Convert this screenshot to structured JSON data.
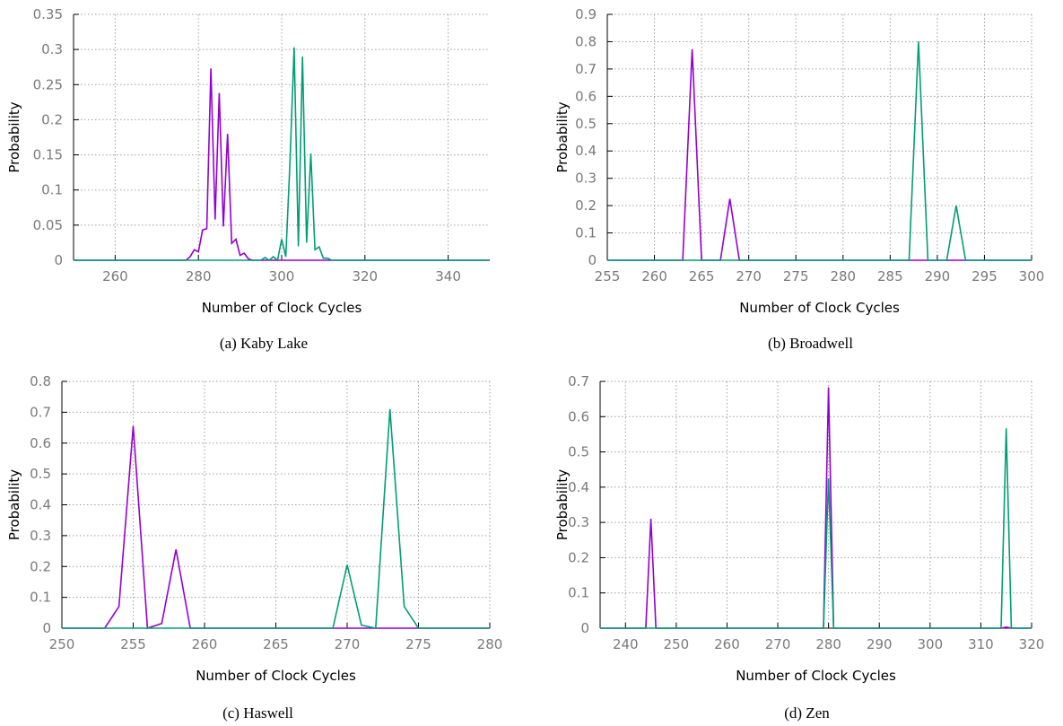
{
  "colors": {
    "series_a": "#9400d3",
    "series_b": "#009e73",
    "grid": "#a0a0a0",
    "axis": "#000000"
  },
  "chart_data": [
    {
      "type": "line",
      "caption": "(a) Kaby Lake",
      "xlabel": "Number of Clock Cycles",
      "ylabel": "Probability",
      "xlim": [
        250,
        350
      ],
      "ylim": [
        0,
        0.35
      ],
      "xticks": [
        260,
        280,
        300,
        320,
        340
      ],
      "yticks": [
        0,
        0.05,
        0.1,
        0.15,
        0.2,
        0.25,
        0.3,
        0.35
      ],
      "ytick_labels": [
        "0",
        "0.05",
        "0.1",
        "0.15",
        "0.2",
        "0.25",
        "0.3",
        "0.35"
      ],
      "grid": true,
      "series": [
        {
          "color": "#9400d3",
          "x": [
            250,
            277,
            278,
            279,
            280,
            281,
            282,
            283,
            284,
            285,
            286,
            287,
            288,
            289,
            290,
            291,
            292,
            293,
            350
          ],
          "y": [
            0,
            0,
            0.005,
            0.015,
            0.012,
            0.043,
            0.045,
            0.273,
            0.058,
            0.238,
            0.048,
            0.18,
            0.024,
            0.03,
            0.007,
            0.01,
            0.002,
            0,
            0
          ]
        },
        {
          "color": "#009e73",
          "x": [
            250,
            295,
            296,
            297,
            298,
            299,
            300,
            301,
            302,
            303,
            304,
            305,
            306,
            307,
            308,
            309,
            310,
            311,
            312,
            350
          ],
          "y": [
            0,
            0,
            0.004,
            0,
            0.005,
            0,
            0.03,
            0.005,
            0.141,
            0.303,
            0.02,
            0.29,
            0.025,
            0.152,
            0.015,
            0.019,
            0.003,
            0.003,
            0,
            0
          ]
        }
      ]
    },
    {
      "type": "line",
      "caption": "(b) Broadwell",
      "xlabel": "Number of Clock Cycles",
      "ylabel": "Probability",
      "xlim": [
        255,
        300
      ],
      "ylim": [
        0,
        0.9
      ],
      "xticks": [
        255,
        260,
        265,
        270,
        275,
        280,
        285,
        290,
        295,
        300
      ],
      "yticks": [
        0,
        0.1,
        0.2,
        0.3,
        0.4,
        0.5,
        0.6,
        0.7,
        0.8,
        0.9
      ],
      "ytick_labels": [
        "0",
        "0.1",
        "0.2",
        "0.3",
        "0.4",
        "0.5",
        "0.6",
        "0.7",
        "0.8",
        "0.9"
      ],
      "grid": true,
      "series": [
        {
          "color": "#9400d3",
          "x": [
            255,
            263,
            264,
            265,
            267,
            268,
            269,
            300
          ],
          "y": [
            0,
            0,
            0.772,
            0,
            0,
            0.225,
            0,
            0
          ]
        },
        {
          "color": "#009e73",
          "x": [
            255,
            287,
            288,
            289,
            291,
            292,
            293,
            300
          ],
          "y": [
            0,
            0,
            0.8,
            0,
            0,
            0.2,
            0,
            0
          ]
        }
      ]
    },
    {
      "type": "line",
      "caption": "(c) Haswell",
      "xlabel": "Number of Clock Cycles",
      "ylabel": "Probability",
      "xlim": [
        250,
        280
      ],
      "ylim": [
        0,
        0.8
      ],
      "xticks": [
        250,
        255,
        260,
        265,
        270,
        275,
        280
      ],
      "yticks": [
        0,
        0.1,
        0.2,
        0.3,
        0.4,
        0.5,
        0.6,
        0.7,
        0.8
      ],
      "ytick_labels": [
        "0",
        "0.1",
        "0.2",
        "0.3",
        "0.4",
        "0.5",
        "0.6",
        "0.7",
        "0.8"
      ],
      "grid": true,
      "series": [
        {
          "color": "#9400d3",
          "x": [
            250,
            253,
            254,
            255,
            256,
            257,
            258,
            259,
            280
          ],
          "y": [
            0,
            0,
            0.07,
            0.655,
            0,
            0.015,
            0.255,
            0,
            0
          ]
        },
        {
          "color": "#009e73",
          "x": [
            250,
            269,
            270,
            271,
            272,
            273,
            274,
            275,
            280
          ],
          "y": [
            0,
            0,
            0.205,
            0.01,
            0,
            0.71,
            0.07,
            0,
            0
          ]
        }
      ]
    },
    {
      "type": "line",
      "caption": "(d) Zen",
      "xlabel": "Number of Clock Cycles",
      "ylabel": "Probability",
      "xlim": [
        235,
        320
      ],
      "ylim": [
        0,
        0.7
      ],
      "xticks": [
        240,
        250,
        260,
        270,
        280,
        290,
        300,
        310,
        320
      ],
      "yticks": [
        0,
        0.1,
        0.2,
        0.3,
        0.4,
        0.5,
        0.6,
        0.7
      ],
      "ytick_labels": [
        "0",
        "0.1",
        "0.2",
        "0.3",
        "0.4",
        "0.5",
        "0.6",
        "0.7"
      ],
      "grid": true,
      "series": [
        {
          "color": "#9400d3",
          "x": [
            235,
            244,
            245,
            246,
            279,
            280,
            281,
            314,
            315,
            316,
            320
          ],
          "y": [
            0,
            0,
            0.31,
            0,
            0,
            0.683,
            0,
            0,
            0.003,
            0,
            0
          ]
        },
        {
          "color": "#009e73",
          "x": [
            235,
            279,
            280,
            281,
            314,
            315,
            316,
            320
          ],
          "y": [
            0,
            0,
            0.425,
            0,
            0,
            0.567,
            0,
            0
          ]
        }
      ]
    }
  ]
}
